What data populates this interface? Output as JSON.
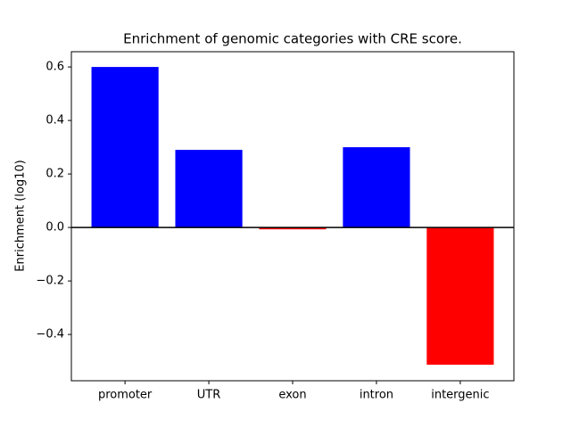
{
  "chart_data": {
    "type": "bar",
    "title": "Enrichment of genomic categories with CRE score.",
    "ylabel": "Enrichment (log10)",
    "categories": [
      "promoter",
      "UTR",
      "exon",
      "intron",
      "intergenic"
    ],
    "values": [
      0.6,
      0.29,
      -0.007,
      0.3,
      -0.513
    ],
    "colors": [
      "#0000ff",
      "#0000ff",
      "#ff0000",
      "#0000ff",
      "#ff0000"
    ],
    "ylim": [
      -0.573,
      0.657
    ],
    "yticks": [
      {
        "value": -0.4,
        "label": "−0.4"
      },
      {
        "value": -0.2,
        "label": "−0.2"
      },
      {
        "value": 0,
        "label": "0.0"
      },
      {
        "value": 0.2,
        "label": "0.2"
      },
      {
        "value": 0.4,
        "label": "0.4"
      },
      {
        "value": 0.6,
        "label": "0.6"
      }
    ],
    "axhline": 0,
    "grid": false
  }
}
